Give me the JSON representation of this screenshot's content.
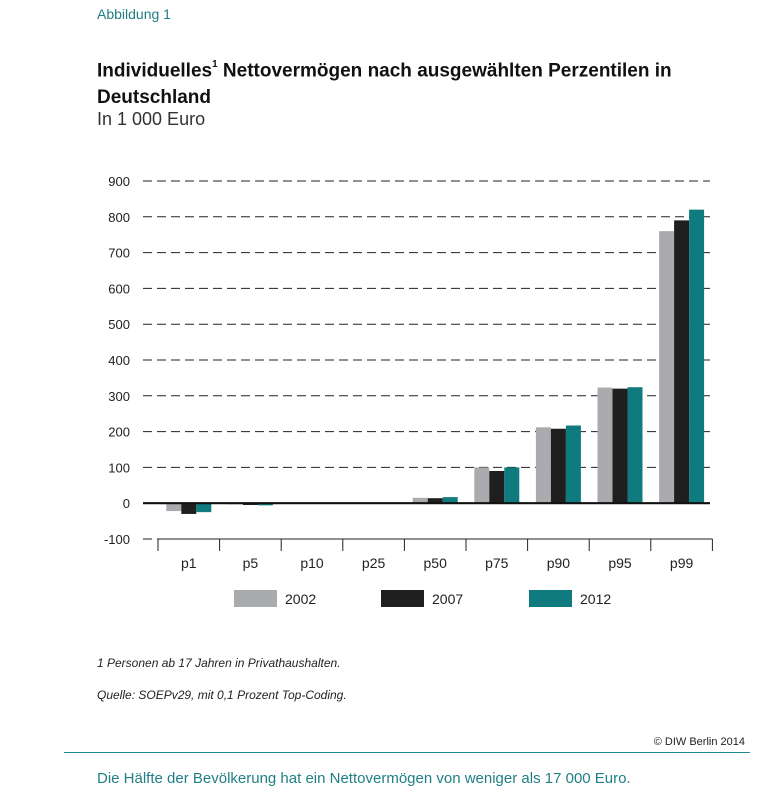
{
  "figure_label": "Abbildung 1",
  "title": "Individuelles",
  "title_superscript": "1",
  "title_rest": " Nettovermögen nach ausgewählten Perzentilen in Deutschland",
  "subtitle": "In 1 000 Euro",
  "footnote": "1   Personen ab 17 Jahren in Privathaushalten.",
  "source": "Quelle: SOEPv29, mit 0,1 Prozent Top-Coding.",
  "copyright": "© DIW Berlin 2014",
  "bottom_note": "Die Hälfte der Bevölkerung hat ein Nettovermögen von weniger als 17 000 Euro.",
  "colors": {
    "2002": "#a9abae",
    "2007": "#1f1f1f",
    "2012": "#0f7b7f"
  },
  "chart_data": {
    "type": "bar",
    "categories": [
      "p1",
      "p5",
      "p10",
      "p25",
      "p50",
      "p75",
      "p90",
      "p95",
      "p99"
    ],
    "series": [
      {
        "name": "2002",
        "values": [
          -22,
          -3,
          0,
          0,
          15,
          100,
          212,
          323,
          760
        ]
      },
      {
        "name": "2007",
        "values": [
          -30,
          -5,
          0,
          0,
          14,
          90,
          208,
          320,
          790
        ]
      },
      {
        "name": "2012",
        "values": [
          -25,
          -6,
          0,
          0,
          17,
          100,
          217,
          324,
          820
        ]
      }
    ],
    "ylim": [
      -100,
      900
    ],
    "yticks": [
      -100,
      0,
      100,
      200,
      300,
      400,
      500,
      600,
      700,
      800,
      900
    ],
    "grid": "dashed horizontal",
    "legend": "bottom"
  }
}
